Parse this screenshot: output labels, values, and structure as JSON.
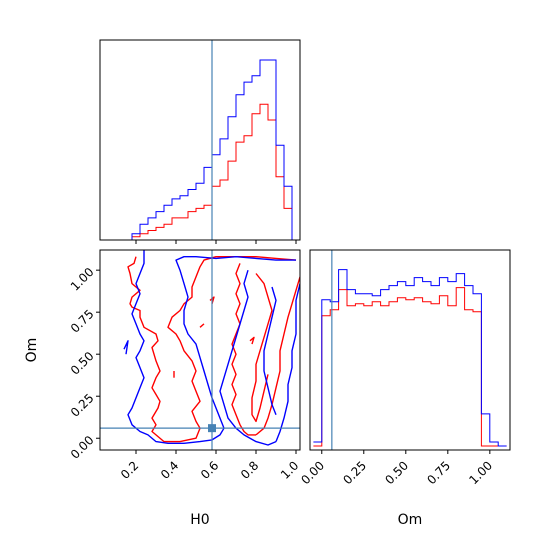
{
  "chart_data": [
    {
      "type": "histogram",
      "panel": "H0 marginal",
      "xlim": [
        0.02,
        1.02
      ],
      "x_ticks": [
        0.2,
        0.4,
        0.6,
        0.8,
        1.0
      ],
      "y_ticks_shown": false,
      "truth_line_x": 0.58,
      "bin_edges": [
        0.02,
        0.06,
        0.1,
        0.14,
        0.18,
        0.22,
        0.26,
        0.3,
        0.34,
        0.38,
        0.42,
        0.46,
        0.5,
        0.54,
        0.58,
        0.62,
        0.66,
        0.7,
        0.74,
        0.78,
        0.82,
        0.86,
        0.9,
        0.94,
        0.98,
        1.02
      ],
      "series": [
        {
          "color": "#ff0000",
          "values": [
            0,
            0,
            0,
            0,
            1,
            2,
            3,
            4,
            5,
            7,
            7,
            9,
            10,
            11,
            17,
            19,
            25,
            31,
            33,
            40,
            43,
            38,
            20,
            10,
            0
          ]
        },
        {
          "color": "#0000ff",
          "values": [
            0,
            0,
            0,
            0,
            2,
            5,
            7,
            9,
            11,
            13,
            14,
            16,
            18,
            23,
            27,
            32,
            39,
            46,
            50,
            52,
            57,
            57,
            30,
            17,
            0
          ]
        }
      ]
    },
    {
      "type": "contour",
      "panel": "H0 vs Om",
      "xlabel": "H0",
      "ylabel": "Om",
      "xlim": [
        0.02,
        1.02
      ],
      "ylim": [
        -0.07,
        1.12
      ],
      "x_ticks": [
        "0.2",
        "0.4",
        "0.6",
        "0.8",
        "1.0"
      ],
      "y_ticks": [
        "0.00",
        "0.25",
        "0.50",
        "0.75",
        "1.00"
      ],
      "truth_point": [
        0.58,
        0.06
      ],
      "series": [
        {
          "color": "#ff0000",
          "polylines": [
            [
              [
                0.2,
                1.08
              ],
              [
                0.19,
                1.04
              ],
              [
                0.16,
                1.02
              ],
              [
                0.17,
                0.98
              ],
              [
                0.18,
                0.92
              ],
              [
                0.22,
                0.88
              ],
              [
                0.18,
                0.84
              ],
              [
                0.17,
                0.8
              ],
              [
                0.18,
                0.78
              ],
              [
                0.22,
                0.76
              ],
              [
                0.22,
                0.72
              ],
              [
                0.24,
                0.66
              ],
              [
                0.3,
                0.62
              ],
              [
                0.31,
                0.58
              ],
              [
                0.28,
                0.54
              ],
              [
                0.29,
                0.5
              ],
              [
                0.3,
                0.46
              ],
              [
                0.32,
                0.4
              ],
              [
                0.3,
                0.36
              ],
              [
                0.28,
                0.3
              ],
              [
                0.3,
                0.26
              ],
              [
                0.32,
                0.22
              ],
              [
                0.31,
                0.18
              ],
              [
                0.28,
                0.12
              ],
              [
                0.3,
                0.08
              ],
              [
                0.28,
                0.04
              ],
              [
                0.3,
                0.02
              ],
              [
                0.34,
                -0.02
              ],
              [
                0.42,
                -0.02
              ]
            ],
            [
              [
                0.42,
                -0.02
              ],
              [
                0.5,
                0.0
              ],
              [
                0.52,
                0.06
              ],
              [
                0.5,
                0.1
              ],
              [
                0.48,
                0.16
              ],
              [
                0.52,
                0.22
              ],
              [
                0.5,
                0.28
              ],
              [
                0.48,
                0.34
              ],
              [
                0.5,
                0.4
              ],
              [
                0.48,
                0.46
              ],
              [
                0.44,
                0.52
              ],
              [
                0.42,
                0.58
              ],
              [
                0.4,
                0.62
              ],
              [
                0.36,
                0.66
              ],
              [
                0.38,
                0.72
              ],
              [
                0.42,
                0.76
              ],
              [
                0.44,
                0.8
              ],
              [
                0.48,
                0.84
              ],
              [
                0.48,
                0.9
              ],
              [
                0.5,
                0.96
              ],
              [
                0.52,
                1.02
              ],
              [
                0.54,
                1.06
              ],
              [
                0.6,
                1.08
              ],
              [
                0.7,
                1.08
              ],
              [
                0.8,
                1.08
              ],
              [
                0.9,
                1.07
              ],
              [
                1.0,
                1.06
              ]
            ],
            [
              [
                0.72,
                1.04
              ],
              [
                0.7,
                0.98
              ],
              [
                0.72,
                0.92
              ],
              [
                0.7,
                0.86
              ],
              [
                0.72,
                0.8
              ],
              [
                0.7,
                0.74
              ],
              [
                0.72,
                0.68
              ],
              [
                0.7,
                0.62
              ],
              [
                0.68,
                0.56
              ],
              [
                0.7,
                0.5
              ],
              [
                0.68,
                0.44
              ],
              [
                0.7,
                0.38
              ],
              [
                0.68,
                0.32
              ],
              [
                0.7,
                0.26
              ],
              [
                0.68,
                0.2
              ],
              [
                0.7,
                0.14
              ],
              [
                0.72,
                0.08
              ],
              [
                0.74,
                0.04
              ],
              [
                0.76,
                0.02
              ],
              [
                0.8,
                0.02
              ]
            ],
            [
              [
                0.8,
                0.02
              ],
              [
                0.84,
                0.06
              ],
              [
                0.86,
                0.12
              ],
              [
                0.88,
                0.2
              ],
              [
                0.9,
                0.3
              ],
              [
                0.92,
                0.4
              ],
              [
                0.92,
                0.52
              ],
              [
                0.94,
                0.62
              ],
              [
                0.96,
                0.72
              ],
              [
                0.98,
                0.8
              ],
              [
                1.0,
                0.88
              ],
              [
                1.02,
                0.96
              ]
            ],
            [
              [
                0.8,
                0.98
              ],
              [
                0.84,
                0.92
              ],
              [
                0.86,
                0.84
              ],
              [
                0.88,
                0.76
              ],
              [
                0.86,
                0.68
              ],
              [
                0.84,
                0.6
              ],
              [
                0.82,
                0.52
              ],
              [
                0.8,
                0.44
              ],
              [
                0.8,
                0.34
              ],
              [
                0.78,
                0.24
              ],
              [
                0.78,
                0.14
              ],
              [
                0.8,
                0.1
              ],
              [
                0.82,
                0.18
              ],
              [
                0.84,
                0.28
              ],
              [
                0.86,
                0.38
              ]
            ],
            [
              [
                0.57,
                0.82
              ],
              [
                0.59,
                0.84
              ],
              [
                0.58,
                0.8
              ]
            ],
            [
              [
                0.52,
                0.66
              ],
              [
                0.54,
                0.68
              ]
            ],
            [
              [
                0.39,
                0.4
              ],
              [
                0.39,
                0.36
              ]
            ],
            [
              [
                0.77,
                0.58
              ],
              [
                0.79,
                0.6
              ],
              [
                0.78,
                0.56
              ]
            ]
          ]
        },
        {
          "color": "#0000ff",
          "polylines": [
            [
              [
                0.24,
                1.12
              ],
              [
                0.24,
                1.04
              ],
              [
                0.22,
                0.98
              ],
              [
                0.2,
                0.92
              ],
              [
                0.22,
                0.86
              ],
              [
                0.2,
                0.8
              ],
              [
                0.18,
                0.74
              ],
              [
                0.2,
                0.68
              ],
              [
                0.22,
                0.62
              ],
              [
                0.24,
                0.58
              ],
              [
                0.22,
                0.52
              ],
              [
                0.2,
                0.48
              ],
              [
                0.22,
                0.42
              ],
              [
                0.24,
                0.36
              ],
              [
                0.22,
                0.3
              ],
              [
                0.2,
                0.24
              ],
              [
                0.18,
                0.18
              ],
              [
                0.16,
                0.14
              ],
              [
                0.18,
                0.08
              ],
              [
                0.22,
                0.04
              ],
              [
                0.26,
                0.02
              ],
              [
                0.3,
                -0.02
              ],
              [
                0.36,
                -0.03
              ],
              [
                0.44,
                -0.03
              ]
            ],
            [
              [
                0.44,
                -0.03
              ],
              [
                0.52,
                -0.02
              ],
              [
                0.58,
                -0.01
              ],
              [
                0.62,
                0.02
              ],
              [
                0.64,
                0.06
              ],
              [
                0.62,
                0.12
              ],
              [
                0.6,
                0.18
              ],
              [
                0.58,
                0.24
              ],
              [
                0.56,
                0.32
              ],
              [
                0.54,
                0.4
              ],
              [
                0.52,
                0.48
              ],
              [
                0.5,
                0.56
              ],
              [
                0.46,
                0.62
              ],
              [
                0.44,
                0.68
              ],
              [
                0.44,
                0.76
              ],
              [
                0.46,
                0.84
              ],
              [
                0.44,
                0.92
              ],
              [
                0.42,
                1.0
              ],
              [
                0.4,
                1.06
              ],
              [
                0.44,
                1.08
              ],
              [
                0.5,
                1.08
              ],
              [
                0.6,
                1.07
              ],
              [
                0.7,
                1.08
              ],
              [
                0.8,
                1.07
              ],
              [
                0.9,
                1.06
              ],
              [
                1.0,
                1.06
              ]
            ],
            [
              [
                0.76,
                1.0
              ],
              [
                0.74,
                0.92
              ],
              [
                0.76,
                0.84
              ],
              [
                0.74,
                0.76
              ],
              [
                0.72,
                0.68
              ],
              [
                0.7,
                0.6
              ],
              [
                0.68,
                0.52
              ],
              [
                0.66,
                0.44
              ],
              [
                0.64,
                0.36
              ],
              [
                0.62,
                0.28
              ],
              [
                0.64,
                0.2
              ],
              [
                0.66,
                0.12
              ],
              [
                0.7,
                0.06
              ],
              [
                0.74,
                0.02
              ],
              [
                0.8,
                -0.02
              ],
              [
                0.86,
                -0.04
              ],
              [
                0.9,
                -0.02
              ]
            ],
            [
              [
                0.9,
                -0.02
              ],
              [
                0.92,
                0.04
              ],
              [
                0.94,
                0.12
              ],
              [
                0.96,
                0.22
              ],
              [
                0.96,
                0.32
              ],
              [
                0.98,
                0.42
              ],
              [
                0.98,
                0.52
              ],
              [
                1.0,
                0.62
              ],
              [
                1.0,
                0.72
              ],
              [
                1.0,
                0.82
              ],
              [
                1.02,
                0.92
              ]
            ],
            [
              [
                0.88,
                0.9
              ],
              [
                0.9,
                0.82
              ],
              [
                0.88,
                0.72
              ],
              [
                0.86,
                0.62
              ],
              [
                0.84,
                0.52
              ],
              [
                0.84,
                0.4
              ],
              [
                0.86,
                0.3
              ],
              [
                0.88,
                0.2
              ],
              [
                0.9,
                0.14
              ]
            ],
            [
              [
                0.14,
                0.53
              ],
              [
                0.16,
                0.58
              ],
              [
                0.15,
                0.5
              ]
            ]
          ]
        }
      ]
    },
    {
      "type": "histogram",
      "panel": "Om marginal",
      "xlabel": "Om",
      "xlim": [
        -0.07,
        1.12
      ],
      "x_ticks": [
        "0.00",
        "0.25",
        "0.50",
        "0.75",
        "1.00"
      ],
      "y_ticks_shown": false,
      "truth_line_x": 0.06,
      "bin_edges": [
        -0.05,
        0.0,
        0.05,
        0.1,
        0.15,
        0.2,
        0.25,
        0.3,
        0.35,
        0.4,
        0.45,
        0.5,
        0.55,
        0.6,
        0.65,
        0.7,
        0.75,
        0.8,
        0.85,
        0.9,
        0.95,
        1.0,
        1.05,
        1.1
      ],
      "series": [
        {
          "color": "#ff0000",
          "values": [
            0,
            65,
            68,
            78,
            70,
            71,
            70,
            72,
            70,
            72,
            74,
            73,
            74,
            72,
            71,
            75,
            70,
            79,
            68,
            67,
            0,
            0,
            0
          ]
        },
        {
          "color": "#0000ff",
          "values": [
            2,
            73,
            72,
            88,
            78,
            76,
            76,
            75,
            78,
            80,
            82,
            80,
            84,
            82,
            80,
            84,
            82,
            86,
            80,
            76,
            16,
            2,
            0
          ]
        }
      ]
    }
  ]
}
